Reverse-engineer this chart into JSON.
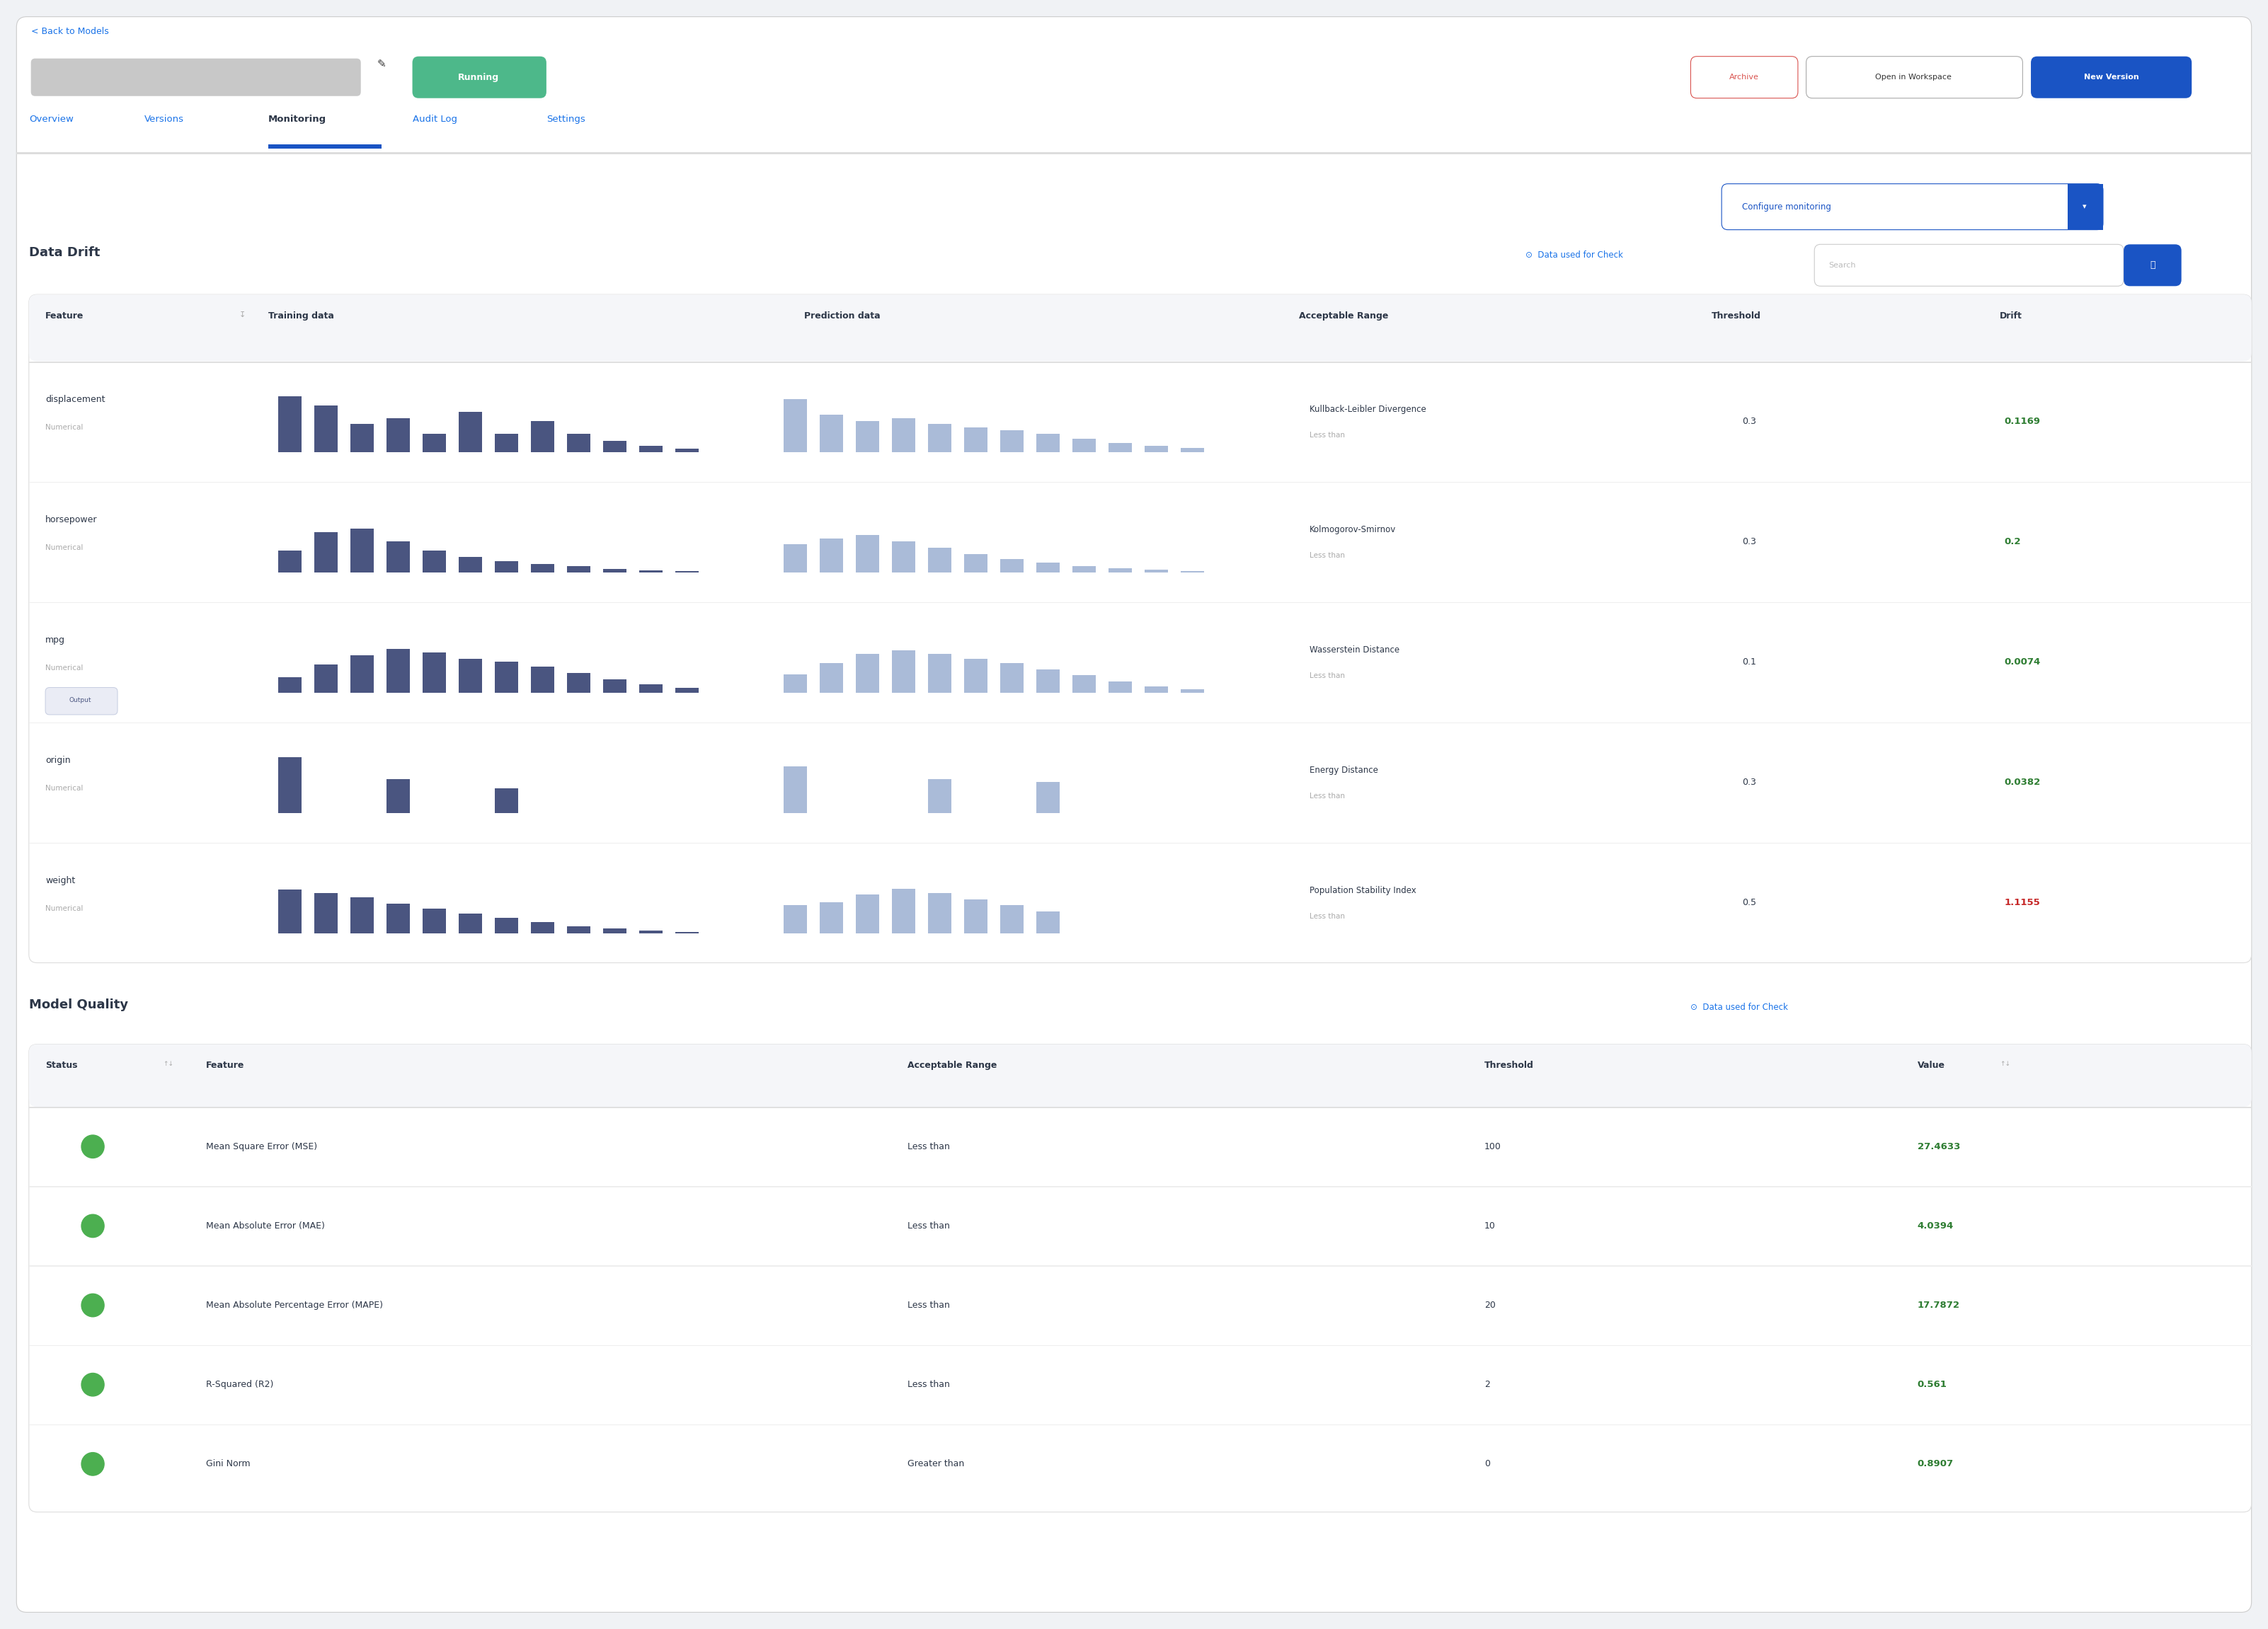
{
  "page_bg": "#f0f2f5",
  "card_bg": "#ffffff",
  "border_color": "#e0e0e0",
  "back_to_models": "< Back to Models",
  "back_color": "#1a73e8",
  "running_text": "Running",
  "running_bg": "#4db88a",
  "running_fg": "#ffffff",
  "archive_text": "Archive",
  "archive_border": "#d9534f",
  "archive_color": "#d9534f",
  "open_workspace_text": "Open in Workspace",
  "new_version_text": "New Version",
  "new_version_bg": "#1a54c4",
  "new_version_fg": "#ffffff",
  "tabs": [
    "Overview",
    "Versions",
    "Monitoring",
    "Audit Log",
    "Settings"
  ],
  "active_tab": "Monitoring",
  "tab_color": "#1a73e8",
  "active_tab_color": "#2d3748",
  "tab_underline": "#1a54c4",
  "configure_monitoring": "Configure monitoring",
  "data_drift_title": "Data Drift",
  "data_used_check": "Data used for Check",
  "search_placeholder": "Search",
  "drift_columns": [
    "Feature",
    "Training data",
    "Prediction data",
    "Acceptable Range",
    "Threshold",
    "Drift"
  ],
  "drift_rows": [
    {
      "feature": "displacement",
      "type": "Numerical",
      "output": false,
      "acceptable_range": "Kullback-Leibler Divergence",
      "range_sub": "Less than",
      "threshold": "0.3",
      "drift": "0.1169",
      "drift_color": "#2e7d32",
      "train_bars": [
        0.9,
        0.75,
        0.45,
        0.55,
        0.3,
        0.65,
        0.3,
        0.5,
        0.3,
        0.18,
        0.1,
        0.06
      ],
      "pred_bars": [
        0.85,
        0.6,
        0.5,
        0.55,
        0.45,
        0.4,
        0.35,
        0.3,
        0.22,
        0.15,
        0.1,
        0.07
      ]
    },
    {
      "feature": "horsepower",
      "type": "Numerical",
      "output": false,
      "acceptable_range": "Kolmogorov-Smirnov",
      "range_sub": "Less than",
      "threshold": "0.3",
      "drift": "0.2",
      "drift_color": "#2e7d32",
      "train_bars": [
        0.35,
        0.65,
        0.7,
        0.5,
        0.35,
        0.25,
        0.18,
        0.14,
        0.1,
        0.06,
        0.04,
        0.02
      ],
      "pred_bars": [
        0.45,
        0.55,
        0.6,
        0.5,
        0.4,
        0.3,
        0.22,
        0.16,
        0.1,
        0.07,
        0.05,
        0.02
      ]
    },
    {
      "feature": "mpg",
      "type": "Numerical",
      "output": true,
      "acceptable_range": "Wasserstein Distance",
      "range_sub": "Less than",
      "threshold": "0.1",
      "drift": "0.0074",
      "drift_color": "#2e7d32",
      "train_bars": [
        0.25,
        0.45,
        0.6,
        0.7,
        0.65,
        0.55,
        0.5,
        0.42,
        0.32,
        0.22,
        0.14,
        0.08
      ],
      "pred_bars": [
        0.3,
        0.48,
        0.62,
        0.68,
        0.62,
        0.55,
        0.48,
        0.38,
        0.28,
        0.18,
        0.1,
        0.06
      ]
    },
    {
      "feature": "origin",
      "type": "Numerical",
      "output": false,
      "acceptable_range": "Energy Distance",
      "range_sub": "Less than",
      "threshold": "0.3",
      "drift": "0.0382",
      "drift_color": "#2e7d32",
      "train_bars": [
        0.9,
        0.0,
        0.0,
        0.55,
        0.0,
        0.0,
        0.4,
        0.0,
        0.0,
        0.0,
        0.0,
        0.0
      ],
      "pred_bars": [
        0.75,
        0.0,
        0.0,
        0.0,
        0.55,
        0.0,
        0.0,
        0.5,
        0.0,
        0.0,
        0.0,
        0.0
      ]
    },
    {
      "feature": "weight",
      "type": "Numerical",
      "output": false,
      "acceptable_range": "Population Stability Index",
      "range_sub": "Less than",
      "threshold": "0.5",
      "drift": "1.1155",
      "drift_color": "#c62828",
      "train_bars": [
        0.7,
        0.65,
        0.58,
        0.48,
        0.4,
        0.32,
        0.25,
        0.18,
        0.12,
        0.08,
        0.05,
        0.02
      ],
      "pred_bars": [
        0.45,
        0.5,
        0.62,
        0.72,
        0.65,
        0.55,
        0.45,
        0.35,
        0.0,
        0.0,
        0.0,
        0.0
      ]
    }
  ],
  "model_quality_title": "Model Quality",
  "model_quality_columns": [
    "Status",
    "Feature",
    "Acceptable Range",
    "Threshold",
    "Value"
  ],
  "model_quality_rows": [
    {
      "status_color": "#4caf50",
      "feature": "Mean Square Error (MSE)",
      "range": "Less than",
      "threshold": "100",
      "value": "27.4633",
      "value_color": "#2e7d32"
    },
    {
      "status_color": "#4caf50",
      "feature": "Mean Absolute Error (MAE)",
      "range": "Less than",
      "threshold": "10",
      "value": "4.0394",
      "value_color": "#2e7d32"
    },
    {
      "status_color": "#4caf50",
      "feature": "Mean Absolute Percentage Error (MAPE)",
      "range": "Less than",
      "threshold": "20",
      "value": "17.7872",
      "value_color": "#2e7d32"
    },
    {
      "status_color": "#4caf50",
      "feature": "R-Squared (R2)",
      "range": "Less than",
      "threshold": "2",
      "value": "0.561",
      "value_color": "#2e7d32"
    },
    {
      "status_color": "#4caf50",
      "feature": "Gini Norm",
      "range": "Greater than",
      "threshold": "0",
      "value": "0.8907",
      "value_color": "#2e7d32"
    }
  ],
  "train_bar_color": "#4a5580",
  "pred_bar_color": "#aabbd8",
  "output_tag_bg": "#eaecf5",
  "output_tag_fg": "#4a5580",
  "output_tag_border": "#c5cce0"
}
